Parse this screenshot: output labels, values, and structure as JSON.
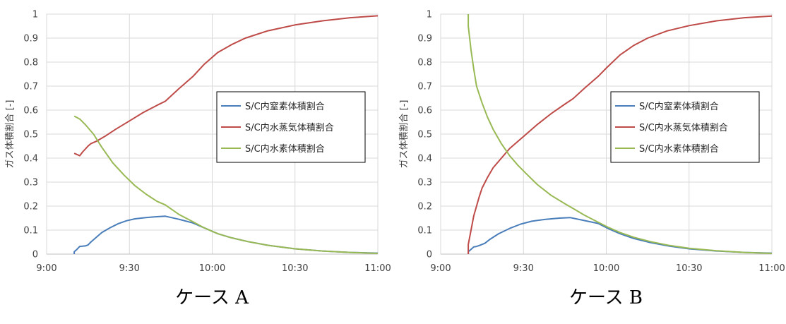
{
  "chart_data": [
    {
      "type": "line",
      "caption": "ケース A",
      "ylabel": "ガス体積割合 [-]",
      "ylim": [
        0,
        1
      ],
      "yticks": [
        "0",
        "0.1",
        "0.2",
        "0.3",
        "0.4",
        "0.5",
        "0.6",
        "0.7",
        "0.8",
        "0.9",
        "1"
      ],
      "xlim": [
        "9:00",
        "11:00"
      ],
      "xticks": [
        "9:00",
        "9:30",
        "10:00",
        "10:30",
        "11:00"
      ],
      "grid": true,
      "legend_position": "center-right",
      "series": [
        {
          "name": "S/C内窒素体積割合",
          "color": "#4a7ebb",
          "points": [
            [
              "9:10",
              0.0
            ],
            [
              "9:10",
              0.01
            ],
            [
              "9:11",
              0.02
            ],
            [
              "9:12",
              0.032
            ],
            [
              "9:14",
              0.034
            ],
            [
              "9:15",
              0.038
            ],
            [
              "9:16",
              0.05
            ],
            [
              "9:18",
              0.07
            ],
            [
              "9:20",
              0.09
            ],
            [
              "9:23",
              0.11
            ],
            [
              "9:26",
              0.127
            ],
            [
              "9:29",
              0.139
            ],
            [
              "9:32",
              0.147
            ],
            [
              "9:36",
              0.152
            ],
            [
              "9:39",
              0.155
            ],
            [
              "9:43",
              0.158
            ],
            [
              "9:48",
              0.145
            ],
            [
              "9:53",
              0.13
            ],
            [
              "9:58",
              0.105
            ],
            [
              "10:02",
              0.085
            ],
            [
              "10:07",
              0.068
            ],
            [
              "10:13",
              0.052
            ],
            [
              "10:20",
              0.037
            ],
            [
              "10:30",
              0.022
            ],
            [
              "10:40",
              0.013
            ],
            [
              "10:50",
              0.007
            ],
            [
              "11:00",
              0.004
            ]
          ]
        },
        {
          "name": "S/C内水蒸気体積割合",
          "color": "#be4b48",
          "points": [
            [
              "9:10",
              0.42
            ],
            [
              "9:12",
              0.41
            ],
            [
              "9:13",
              0.425
            ],
            [
              "9:15",
              0.45
            ],
            [
              "9:16",
              0.46
            ],
            [
              "9:18",
              0.47
            ],
            [
              "9:21",
              0.49
            ],
            [
              "9:25",
              0.52
            ],
            [
              "9:30",
              0.555
            ],
            [
              "9:35",
              0.59
            ],
            [
              "9:40",
              0.62
            ],
            [
              "9:43",
              0.637
            ],
            [
              "9:48",
              0.69
            ],
            [
              "9:53",
              0.74
            ],
            [
              "9:57",
              0.79
            ],
            [
              "10:02",
              0.84
            ],
            [
              "10:07",
              0.873
            ],
            [
              "10:12",
              0.9
            ],
            [
              "10:20",
              0.93
            ],
            [
              "10:30",
              0.955
            ],
            [
              "10:40",
              0.972
            ],
            [
              "10:50",
              0.985
            ],
            [
              "11:00",
              0.993
            ]
          ]
        },
        {
          "name": "S/C内水素体積割合",
          "color": "#98b954",
          "points": [
            [
              "9:10",
              0.575
            ],
            [
              "9:12",
              0.563
            ],
            [
              "9:14",
              0.54
            ],
            [
              "9:17",
              0.5
            ],
            [
              "9:20",
              0.445
            ],
            [
              "9:24",
              0.38
            ],
            [
              "9:28",
              0.33
            ],
            [
              "9:32",
              0.285
            ],
            [
              "9:36",
              0.25
            ],
            [
              "9:40",
              0.22
            ],
            [
              "9:43",
              0.205
            ],
            [
              "9:48",
              0.165
            ],
            [
              "9:53",
              0.135
            ],
            [
              "9:57",
              0.11
            ],
            [
              "10:02",
              0.085
            ],
            [
              "10:07",
              0.068
            ],
            [
              "10:13",
              0.052
            ],
            [
              "10:20",
              0.037
            ],
            [
              "10:30",
              0.022
            ],
            [
              "10:40",
              0.013
            ],
            [
              "10:50",
              0.007
            ],
            [
              "11:00",
              0.003
            ]
          ]
        }
      ]
    },
    {
      "type": "line",
      "caption": "ケース B",
      "ylabel": "ガス体積割合 [-]",
      "ylim": [
        0,
        1
      ],
      "yticks": [
        "0",
        "0.1",
        "0.2",
        "0.3",
        "0.4",
        "0.5",
        "0.6",
        "0.7",
        "0.8",
        "0.9",
        "1"
      ],
      "xlim": [
        "9:00",
        "11:00"
      ],
      "xticks": [
        "9:00",
        "9:30",
        "10:00",
        "10:30",
        "11:00"
      ],
      "grid": true,
      "legend_position": "center-right",
      "series": [
        {
          "name": "S/C内窒素体積割合",
          "color": "#4a7ebb",
          "points": [
            [
              "9:10",
              0.0
            ],
            [
              "9:10",
              0.01
            ],
            [
              "9:11",
              0.02
            ],
            [
              "9:12",
              0.03
            ],
            [
              "9:13",
              0.032
            ],
            [
              "9:14",
              0.036
            ],
            [
              "9:16",
              0.045
            ],
            [
              "9:18",
              0.063
            ],
            [
              "9:21",
              0.085
            ],
            [
              "9:25",
              0.107
            ],
            [
              "9:29",
              0.125
            ],
            [
              "9:33",
              0.137
            ],
            [
              "9:38",
              0.145
            ],
            [
              "9:43",
              0.15
            ],
            [
              "9:47",
              0.152
            ],
            [
              "9:52",
              0.14
            ],
            [
              "9:57",
              0.128
            ],
            [
              "10:01",
              0.105
            ],
            [
              "10:05",
              0.085
            ],
            [
              "10:10",
              0.065
            ],
            [
              "10:16",
              0.048
            ],
            [
              "10:23",
              0.033
            ],
            [
              "10:30",
              0.022
            ],
            [
              "10:40",
              0.013
            ],
            [
              "10:50",
              0.007
            ],
            [
              "11:00",
              0.004
            ]
          ]
        },
        {
          "name": "S/C内水蒸気体積割合",
          "color": "#be4b48",
          "points": [
            [
              "9:10",
              0.0
            ],
            [
              "9:10",
              0.04
            ],
            [
              "9:11",
              0.1
            ],
            [
              "9:12",
              0.16
            ],
            [
              "9:13",
              0.2
            ],
            [
              "9:14",
              0.24
            ],
            [
              "9:15",
              0.275
            ],
            [
              "9:17",
              0.32
            ],
            [
              "9:19",
              0.36
            ],
            [
              "9:22",
              0.4
            ],
            [
              "9:25",
              0.44
            ],
            [
              "9:30",
              0.49
            ],
            [
              "9:35",
              0.54
            ],
            [
              "9:40",
              0.585
            ],
            [
              "9:45",
              0.625
            ],
            [
              "9:48",
              0.648
            ],
            [
              "9:52",
              0.69
            ],
            [
              "9:57",
              0.74
            ],
            [
              "10:00",
              0.775
            ],
            [
              "10:05",
              0.83
            ],
            [
              "10:10",
              0.87
            ],
            [
              "10:15",
              0.9
            ],
            [
              "10:22",
              0.93
            ],
            [
              "10:30",
              0.952
            ],
            [
              "10:40",
              0.972
            ],
            [
              "10:50",
              0.985
            ],
            [
              "11:00",
              0.992
            ]
          ]
        },
        {
          "name": "S/C内水素体積割合",
          "color": "#98b954",
          "points": [
            [
              "9:10",
              1.0
            ],
            [
              "9:10",
              0.95
            ],
            [
              "9:11",
              0.85
            ],
            [
              "9:12",
              0.77
            ],
            [
              "9:13",
              0.7
            ],
            [
              "9:15",
              0.63
            ],
            [
              "9:17",
              0.57
            ],
            [
              "9:19",
              0.52
            ],
            [
              "9:22",
              0.46
            ],
            [
              "9:25",
              0.41
            ],
            [
              "9:28",
              0.37
            ],
            [
              "9:31",
              0.335
            ],
            [
              "9:35",
              0.29
            ],
            [
              "9:40",
              0.245
            ],
            [
              "9:45",
              0.21
            ],
            [
              "9:48",
              0.19
            ],
            [
              "9:52",
              0.163
            ],
            [
              "9:57",
              0.133
            ],
            [
              "10:01",
              0.11
            ],
            [
              "10:05",
              0.09
            ],
            [
              "10:10",
              0.07
            ],
            [
              "10:16",
              0.052
            ],
            [
              "10:23",
              0.036
            ],
            [
              "10:30",
              0.024
            ],
            [
              "10:40",
              0.014
            ],
            [
              "10:50",
              0.007
            ],
            [
              "11:00",
              0.003
            ]
          ]
        }
      ]
    }
  ]
}
